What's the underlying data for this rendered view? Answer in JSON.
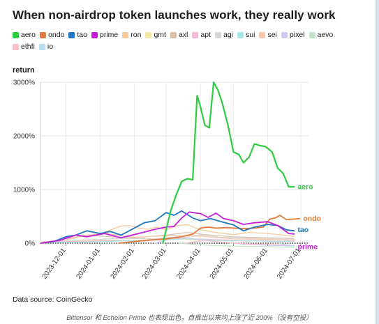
{
  "title": "When non-airdrop token launches work, they really work",
  "source_note": "Data source: CoinGecko",
  "caption": "Bittensor 和 Echelon Prime 也表现出色，自推出以来均上涨了近 200%（没有空投）",
  "legend": [
    {
      "name": "aero",
      "color": "#2ecc40"
    },
    {
      "name": "ondo",
      "color": "#e07b39"
    },
    {
      "name": "tao",
      "color": "#1f77c4"
    },
    {
      "name": "prime",
      "color": "#c41fd6"
    },
    {
      "name": "ron",
      "color": "#f5c99a"
    },
    {
      "name": "gmt",
      "color": "#f1e7a8"
    },
    {
      "name": "axl",
      "color": "#d9bfa8"
    },
    {
      "name": "apt",
      "color": "#f5b6d8"
    },
    {
      "name": "agi",
      "color": "#d7d7d7"
    },
    {
      "name": "sui",
      "color": "#a8e6e6"
    },
    {
      "name": "sei",
      "color": "#f5c6a8"
    },
    {
      "name": "pixel",
      "color": "#cfc8f0"
    },
    {
      "name": "aevo",
      "color": "#bfe6c8"
    },
    {
      "name": "ethfi",
      "color": "#f7c0c8"
    },
    {
      "name": "io",
      "color": "#b8dcf0"
    }
  ],
  "chart_data": {
    "type": "line",
    "title": "When non-airdrop token launches work, they really work",
    "ylabel": "return",
    "y_unit": "%",
    "ylim": [
      0,
      3000
    ],
    "yticks": [
      0,
      1000,
      2000,
      3000
    ],
    "ytick_labels": [
      "0%",
      "1000%",
      "2000%",
      "3000%"
    ],
    "xlim": [
      "2023-11-08",
      "2024-07-08"
    ],
    "xticks": [
      "2023-12-01",
      "2024-01-01",
      "2024-02-01",
      "2024-03-01",
      "2024-04-01",
      "2024-05-01",
      "2024-06-01",
      "2024-07-01"
    ],
    "grid": true,
    "legend_position": "top",
    "end_labels": [
      "aero",
      "ondo",
      "tao",
      "prime"
    ],
    "series": [
      {
        "name": "ron",
        "color": "#f5c99a",
        "width": 1.3,
        "x": [
          "2024-01-05",
          "2024-01-12",
          "2024-01-20",
          "2024-01-28",
          "2024-02-05",
          "2024-02-13",
          "2024-02-21",
          "2024-03-01",
          "2024-03-10",
          "2024-03-20",
          "2024-04-01",
          "2024-04-15",
          "2024-05-01",
          "2024-05-15",
          "2024-06-01",
          "2024-06-15",
          "2024-06-25"
        ],
        "y": [
          200,
          260,
          320,
          330,
          280,
          260,
          300,
          250,
          320,
          350,
          250,
          200,
          160,
          200,
          180,
          150,
          130
        ]
      },
      {
        "name": "gmt",
        "color": "#f1e7a8",
        "width": 1.2,
        "x": [
          "2023-11-10",
          "2023-12-01",
          "2024-01-01",
          "2024-02-01",
          "2024-03-01",
          "2024-04-01",
          "2024-05-01",
          "2024-06-01",
          "2024-06-25"
        ],
        "y": [
          30,
          40,
          60,
          50,
          80,
          60,
          40,
          40,
          30
        ]
      },
      {
        "name": "axl",
        "color": "#d9bfa8",
        "width": 1.2,
        "x": [
          "2023-11-15",
          "2023-12-01",
          "2023-12-20",
          "2024-01-10",
          "2024-02-01",
          "2024-03-01",
          "2024-03-20",
          "2024-04-05",
          "2024-05-01",
          "2024-06-01",
          "2024-06-25"
        ],
        "y": [
          30,
          80,
          150,
          120,
          100,
          150,
          200,
          160,
          120,
          100,
          90
        ]
      },
      {
        "name": "apt",
        "color": "#f5b6d8",
        "width": 1.2,
        "x": [
          "2023-11-10",
          "2023-12-10",
          "2024-01-10",
          "2024-02-10",
          "2024-03-10",
          "2024-04-10",
          "2024-05-10",
          "2024-06-10",
          "2024-06-25"
        ],
        "y": [
          20,
          30,
          50,
          40,
          90,
          70,
          50,
          40,
          40
        ]
      },
      {
        "name": "agi",
        "color": "#d7d7d7",
        "width": 1.2,
        "x": [
          "2023-11-10",
          "2023-12-15",
          "2024-01-20",
          "2024-02-20",
          "2024-03-15",
          "2024-04-01",
          "2024-04-20",
          "2024-05-20",
          "2024-06-25"
        ],
        "y": [
          20,
          60,
          90,
          80,
          130,
          150,
          110,
          90,
          80
        ]
      },
      {
        "name": "sui",
        "color": "#a8e6e6",
        "width": 1.2,
        "x": [
          "2023-11-10",
          "2023-12-15",
          "2024-01-20",
          "2024-02-20",
          "2024-03-20",
          "2024-04-20",
          "2024-05-20",
          "2024-06-25"
        ],
        "y": [
          10,
          20,
          40,
          60,
          80,
          50,
          40,
          30
        ]
      },
      {
        "name": "sei",
        "color": "#f5c6a8",
        "width": 1.2,
        "x": [
          "2023-11-10",
          "2023-12-01",
          "2023-12-20",
          "2024-01-05",
          "2024-02-01",
          "2024-03-01",
          "2024-04-01",
          "2024-05-01",
          "2024-06-01",
          "2024-06-25"
        ],
        "y": [
          20,
          60,
          150,
          180,
          110,
          140,
          130,
          80,
          70,
          60
        ]
      },
      {
        "name": "pixel",
        "color": "#cfc8f0",
        "width": 1.2,
        "x": [
          "2024-02-20",
          "2024-03-05",
          "2024-03-15",
          "2024-04-01",
          "2024-04-20",
          "2024-05-10",
          "2024-06-01",
          "2024-06-25"
        ],
        "y": [
          0,
          80,
          120,
          60,
          20,
          -20,
          -40,
          -50
        ]
      },
      {
        "name": "aevo",
        "color": "#bfe6c8",
        "width": 1.2,
        "x": [
          "2024-03-13",
          "2024-03-25",
          "2024-04-10",
          "2024-04-25",
          "2024-05-10",
          "2024-05-25",
          "2024-06-10",
          "2024-06-25"
        ],
        "y": [
          0,
          -20,
          -40,
          -50,
          -60,
          -60,
          -70,
          -75
        ]
      },
      {
        "name": "ethfi",
        "color": "#f7c0c8",
        "width": 1.2,
        "x": [
          "2024-03-18",
          "2024-03-25",
          "2024-04-05",
          "2024-04-20",
          "2024-05-10",
          "2024-05-25",
          "2024-06-10",
          "2024-06-25"
        ],
        "y": [
          0,
          20,
          60,
          20,
          -10,
          -20,
          -30,
          -40
        ]
      },
      {
        "name": "io",
        "color": "#b8dcf0",
        "width": 1.2,
        "x": [
          "2024-06-11",
          "2024-06-18",
          "2024-06-25"
        ],
        "y": [
          0,
          -30,
          -50
        ]
      },
      {
        "name": "ondo",
        "color": "#e07b39",
        "width": 1.8,
        "x": [
          "2024-01-18",
          "2024-02-01",
          "2024-02-15",
          "2024-03-01",
          "2024-03-15",
          "2024-03-25",
          "2024-04-01",
          "2024-04-08",
          "2024-04-15",
          "2024-04-25",
          "2024-05-01",
          "2024-05-10",
          "2024-05-20",
          "2024-05-28",
          "2024-06-03",
          "2024-06-08",
          "2024-06-12",
          "2024-06-18",
          "2024-06-25",
          "2024-06-30"
        ],
        "y": [
          0,
          30,
          60,
          80,
          120,
          170,
          280,
          300,
          280,
          290,
          280,
          270,
          280,
          300,
          450,
          470,
          520,
          440,
          450,
          460
        ]
      },
      {
        "name": "tao",
        "color": "#1f77c4",
        "width": 1.8,
        "x": [
          "2023-11-08",
          "2023-11-20",
          "2023-12-01",
          "2023-12-10",
          "2023-12-20",
          "2024-01-01",
          "2024-01-10",
          "2024-01-20",
          "2024-02-01",
          "2024-02-10",
          "2024-02-20",
          "2024-03-01",
          "2024-03-08",
          "2024-03-15",
          "2024-03-25",
          "2024-04-01",
          "2024-04-10",
          "2024-04-20",
          "2024-05-01",
          "2024-05-10",
          "2024-05-20",
          "2024-06-01",
          "2024-06-10",
          "2024-06-18",
          "2024-06-25"
        ],
        "y": [
          0,
          30,
          120,
          150,
          230,
          180,
          220,
          150,
          280,
          380,
          420,
          570,
          520,
          600,
          470,
          420,
          460,
          400,
          340,
          230,
          300,
          350,
          330,
          250,
          230
        ]
      },
      {
        "name": "prime",
        "color": "#c41fd6",
        "width": 1.8,
        "x": [
          "2023-11-08",
          "2023-11-25",
          "2023-12-10",
          "2023-12-20",
          "2024-01-05",
          "2024-01-20",
          "2024-02-05",
          "2024-02-20",
          "2024-03-01",
          "2024-03-08",
          "2024-03-15",
          "2024-03-22",
          "2024-04-01",
          "2024-04-08",
          "2024-04-15",
          "2024-04-22",
          "2024-05-01",
          "2024-05-10",
          "2024-05-20",
          "2024-06-01",
          "2024-06-10",
          "2024-06-20",
          "2024-06-25"
        ],
        "y": [
          0,
          50,
          150,
          120,
          180,
          100,
          180,
          260,
          300,
          310,
          470,
          580,
          550,
          480,
          560,
          460,
          420,
          350,
          380,
          400,
          330,
          180,
          170
        ]
      },
      {
        "name": "aero",
        "color": "#2ecc40",
        "width": 2.2,
        "x": [
          "2024-02-27",
          "2024-03-05",
          "2024-03-10",
          "2024-03-15",
          "2024-03-20",
          "2024-03-25",
          "2024-03-29",
          "2024-04-01",
          "2024-04-05",
          "2024-04-09",
          "2024-04-13",
          "2024-04-17",
          "2024-04-21",
          "2024-04-26",
          "2024-05-01",
          "2024-05-06",
          "2024-05-10",
          "2024-05-15",
          "2024-05-20",
          "2024-05-25",
          "2024-05-30",
          "2024-06-05",
          "2024-06-10",
          "2024-06-15",
          "2024-06-20",
          "2024-06-25"
        ],
        "y": [
          0,
          600,
          900,
          1150,
          1200,
          1180,
          2750,
          2550,
          2200,
          2150,
          3000,
          2850,
          2600,
          2200,
          1700,
          1650,
          1500,
          1600,
          1850,
          1820,
          1800,
          1700,
          1400,
          1300,
          1050,
          1050
        ]
      }
    ]
  }
}
